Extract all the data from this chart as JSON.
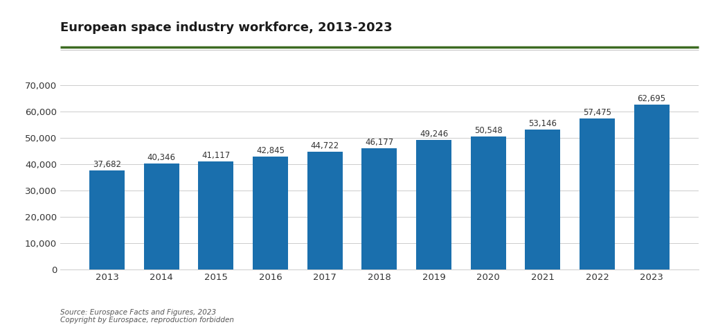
{
  "title": "European space industry workforce, 2013-2023",
  "years": [
    "2013",
    "2014",
    "2015",
    "2016",
    "2017",
    "2018",
    "2019",
    "2020",
    "2021",
    "2022",
    "2023"
  ],
  "values": [
    37682,
    40346,
    41117,
    42845,
    44722,
    46177,
    49246,
    50548,
    53146,
    57475,
    62695
  ],
  "bar_color": "#1a6fad",
  "background_color": "#ffffff",
  "plot_bg_color": "#ffffff",
  "ylim": [
    0,
    75000
  ],
  "yticks": [
    0,
    10000,
    20000,
    30000,
    40000,
    50000,
    60000,
    70000
  ],
  "title_fontsize": 13,
  "label_fontsize": 8.5,
  "tick_fontsize": 9.5,
  "source_text": "Source: Eurospace Facts and Figures, 2023\nCopyright by Eurospace, reproduction forbidden",
  "title_color": "#1a1a1a",
  "tick_color": "#333333",
  "label_color": "#333333",
  "grid_color": "#cccccc",
  "title_bar_color": "#3d6b22",
  "source_fontsize": 7.5
}
